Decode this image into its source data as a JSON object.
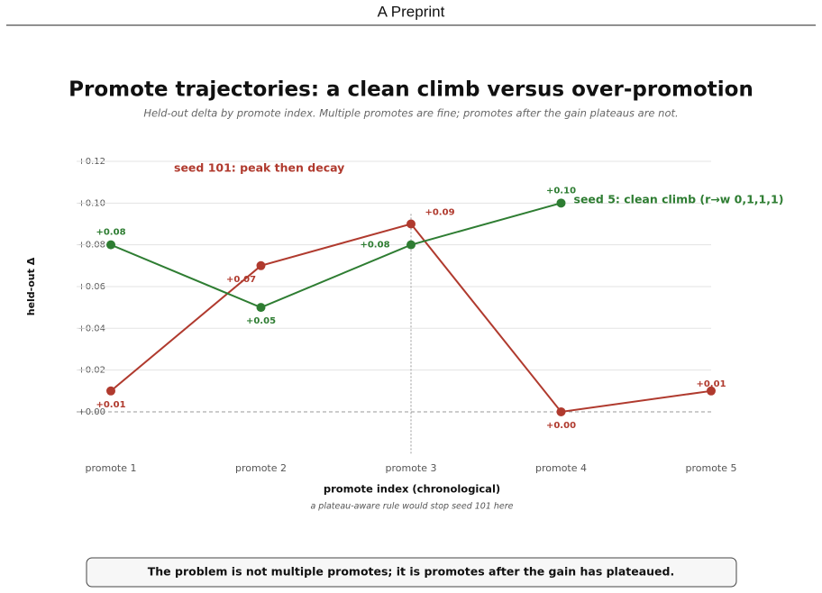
{
  "header": "A Preprint",
  "chart_data": {
    "type": "line",
    "title": "Promote trajectories: a clean climb versus over-promotion",
    "subtitle": "Held-out delta by promote index. Multiple promotes are fine; promotes after the gain plateaus are not.",
    "x_label": "promote index (chronological)",
    "y_label": "held-out Δ",
    "categories": [
      "promote 1",
      "promote 2",
      "promote 3",
      "promote 4",
      "promote 5"
    ],
    "series": [
      {
        "name": "seed 101: peak then decay",
        "color": "#b03a2e",
        "values": [
          0.01,
          0.07,
          0.09,
          0.0,
          0.01
        ],
        "value_labels": [
          "+0.01",
          "+0.07",
          "+0.09",
          "+0.00",
          "+0.01"
        ]
      },
      {
        "name": "seed 5: clean climb (r→w 0,1,1,1)",
        "color": "#2e7d32",
        "values": [
          0.08,
          0.05,
          0.08,
          0.1,
          null
        ],
        "value_labels": [
          "+0.08",
          "+0.05",
          "+0.08",
          "+0.10",
          null
        ]
      }
    ],
    "ylim": [
      -0.02,
      0.125
    ],
    "yticks": [
      {
        "value": 0,
        "label": "+0.00"
      },
      {
        "value": 0.02,
        "label": "+0.02"
      },
      {
        "value": 0.04,
        "label": "+0.04"
      },
      {
        "value": 0.06,
        "label": "+0.06"
      },
      {
        "value": 0.08,
        "label": "+0.08"
      },
      {
        "value": 0.1,
        "label": "+0.10"
      },
      {
        "value": 0.12,
        "label": "+0.12"
      }
    ],
    "grid": true,
    "annotation": {
      "text": "a plateau-aware rule would stop seed 101 here",
      "category": "promote 3"
    }
  },
  "callout": "The problem is not multiple promotes; it is promotes after the gain has plateaued."
}
